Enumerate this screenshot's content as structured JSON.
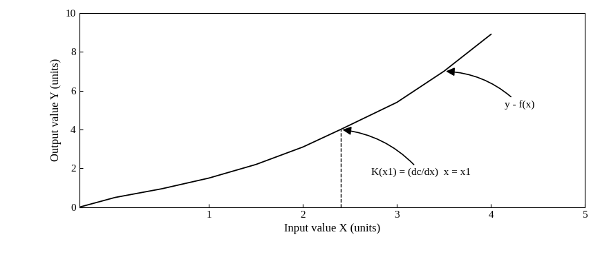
{
  "chart_data": {
    "type": "line",
    "x_label": "Input value X (units)",
    "y_label": "Output value Y (units)",
    "series": [
      {
        "name": "y - f(x)",
        "color": "#000000",
        "line_style": "solid",
        "x": [
          -0.38,
          0,
          0.5,
          1,
          1.5,
          2,
          2.4,
          3,
          3.5,
          4
        ],
        "values": [
          0,
          0.5,
          0.95,
          1.5,
          2.2,
          3.1,
          4,
          5.4,
          7,
          8.9
        ]
      }
    ],
    "annotations": [
      {
        "text": "y - f(x)",
        "x": 3.5,
        "y": 7
      },
      {
        "text": "K(x1) = (dc/dx)  x = x1",
        "x": 2.4,
        "y": 4,
        "line_style": "dashed"
      }
    ],
    "xlim": [
      -0.38,
      5
    ],
    "xticks": [
      1,
      2,
      3,
      4,
      5
    ],
    "ylim": [
      0,
      10
    ],
    "yticks": [
      0,
      2,
      4,
      6,
      8,
      10
    ],
    "grid": false
  }
}
